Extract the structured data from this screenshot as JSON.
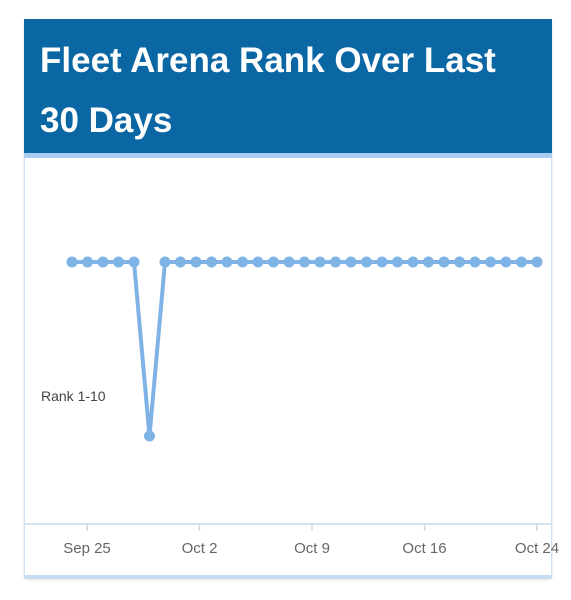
{
  "title": "Fleet Arena Rank Over Last 30 Days",
  "colors": {
    "header_bg": "#0a67a4",
    "header_accent": "#a9cdf0",
    "series": "#7fb3e6",
    "axis": "#c9d9e8"
  },
  "chart_data": {
    "type": "line",
    "title": "Fleet Arena Rank Over Last 30 Days",
    "x_ticks": [
      "Sep 25",
      "Oct 2",
      "Oct 9",
      "Oct 16",
      "Oct 24"
    ],
    "x_tick_days": [
      0,
      7,
      14,
      21,
      28
    ],
    "y_band_label": "Rank 1-10",
    "y_levels": [
      "top",
      "Rank 1-10"
    ],
    "x_range": [
      "Sep 24",
      "Oct 24"
    ],
    "series": [
      {
        "x": [
          "Sep 24",
          "Sep 25",
          "Sep 26",
          "Sep 27",
          "Sep 28",
          "Sep 29",
          "Sep 30",
          "Oct 1",
          "Oct 2",
          "Oct 3",
          "Oct 4",
          "Oct 5",
          "Oct 6",
          "Oct 7",
          "Oct 8",
          "Oct 9",
          "Oct 10",
          "Oct 11",
          "Oct 12",
          "Oct 13",
          "Oct 14",
          "Oct 15",
          "Oct 16",
          "Oct 17",
          "Oct 18",
          "Oct 19",
          "Oct 20",
          "Oct 21",
          "Oct 22",
          "Oct 23",
          "Oct 24"
        ],
        "values": [
          "top",
          "top",
          "top",
          "top",
          "top",
          "Rank 1-10",
          "top",
          "top",
          "top",
          "top",
          "top",
          "top",
          "top",
          "top",
          "top",
          "top",
          "top",
          "top",
          "top",
          "top",
          "top",
          "top",
          "top",
          "top",
          "top",
          "top",
          "top",
          "top",
          "top",
          "top",
          "top"
        ]
      }
    ],
    "grid": false
  }
}
